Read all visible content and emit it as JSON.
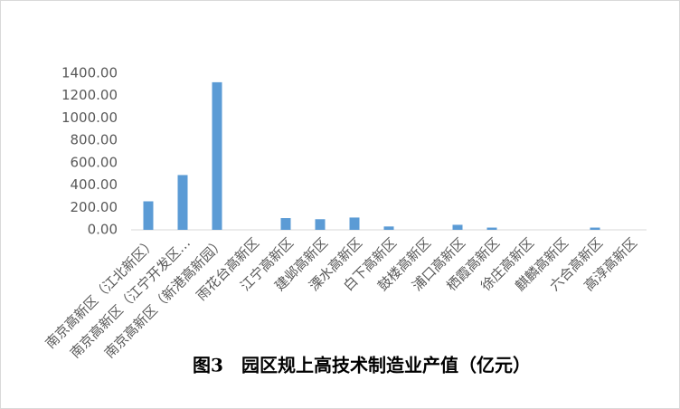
{
  "chart_data": {
    "type": "bar",
    "title": "图3　园区规上高技术制造业产值（亿元）",
    "categories": [
      "南京高新区（江北新区）",
      "南京高新区（江宁开发区…",
      "南京高新区（新港高新园）",
      "雨花台高新区",
      "江宁高新区",
      "建邺高新区",
      "溧水高新区",
      "白下高新区",
      "鼓楼高新区",
      "浦口高新区",
      "栖霞高新区",
      "徐庄高新区",
      "麒麟高新区",
      "六合高新区",
      "高淳高新区"
    ],
    "values": [
      255,
      490,
      1320,
      0,
      105,
      95,
      110,
      30,
      0,
      45,
      20,
      0,
      0,
      20,
      0
    ],
    "color": "#5b9bd5",
    "ylim": [
      0,
      1400
    ],
    "yticks": [
      {
        "value": 0,
        "label": "0.00"
      },
      {
        "value": 200,
        "label": "200.00"
      },
      {
        "value": 400,
        "label": "400.00"
      },
      {
        "value": 600,
        "label": "600.00"
      },
      {
        "value": 800,
        "label": "800.00"
      },
      {
        "value": 1000,
        "label": "1000.00"
      },
      {
        "value": 1200,
        "label": "1200.00"
      },
      {
        "value": 1400,
        "label": "1400.00"
      }
    ],
    "grid": false
  }
}
